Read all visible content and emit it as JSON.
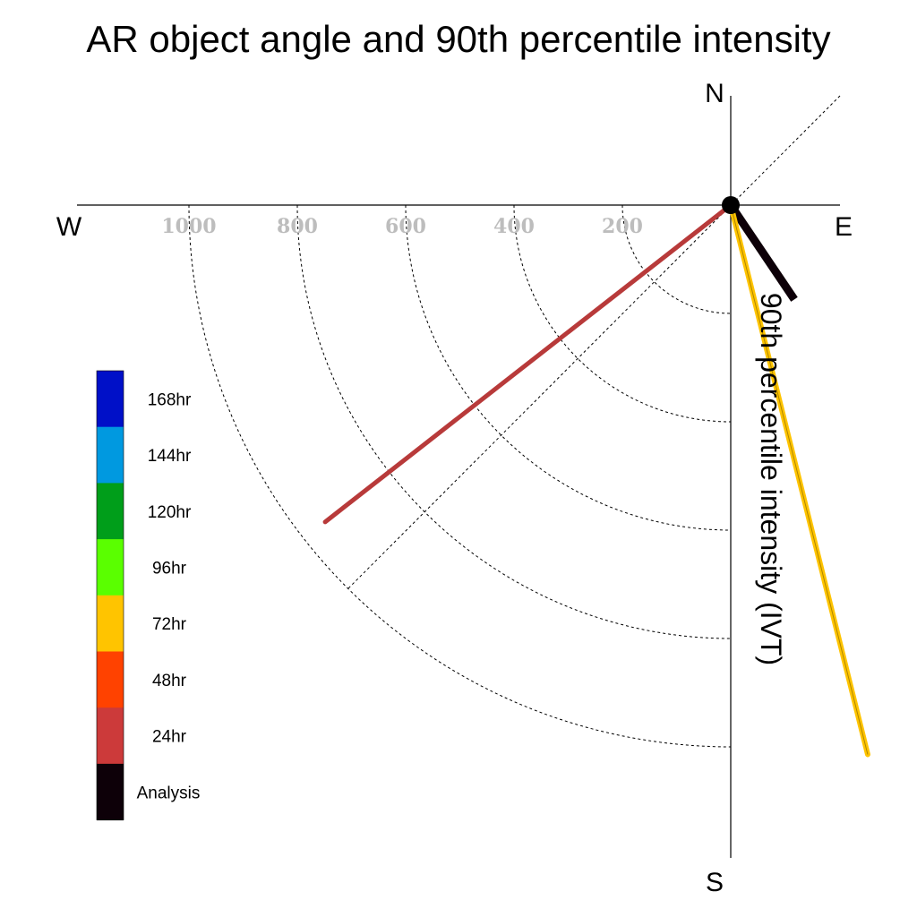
{
  "chart_data": {
    "type": "polar-vector",
    "title": "AR object angle and 90th percentile intensity",
    "radial_label": "90th percentile intensity (IVT)",
    "compass": {
      "north": "N",
      "east": "E",
      "south": "S",
      "west": "W"
    },
    "radial_ticks": [
      200,
      400,
      600,
      800,
      1000
    ],
    "radial_tick_labels": [
      "200",
      "400",
      "600",
      "800",
      "1000"
    ],
    "radial_max": 1000,
    "quadrant": "south-west",
    "grid": true,
    "legend_placement": "left",
    "legend": [
      {
        "label": "168hr",
        "color": "#0010c8"
      },
      {
        "label": "144hr",
        "color": "#0099e0"
      },
      {
        "label": "120hr",
        "color": "#009e1a"
      },
      {
        "label": "96hr",
        "color": "#5aff00"
      },
      {
        "label": "72hr",
        "color": "#ffc400"
      },
      {
        "label": "48hr",
        "color": "#ff4200"
      },
      {
        "label": "24hr",
        "color": "#cc3a3a"
      },
      {
        "label": "Analysis",
        "color": "#0d0008"
      }
    ],
    "vectors": [
      {
        "series": "Analysis",
        "angle_deg": 146,
        "intensity": 210,
        "color": "#0d0008"
      },
      {
        "series": "72hr",
        "angle_deg": 166,
        "intensity": 1045,
        "color": "#ffc400"
      },
      {
        "series": "24hr",
        "angle_deg": 232,
        "intensity": 950,
        "color": "#b83a3a"
      }
    ]
  }
}
